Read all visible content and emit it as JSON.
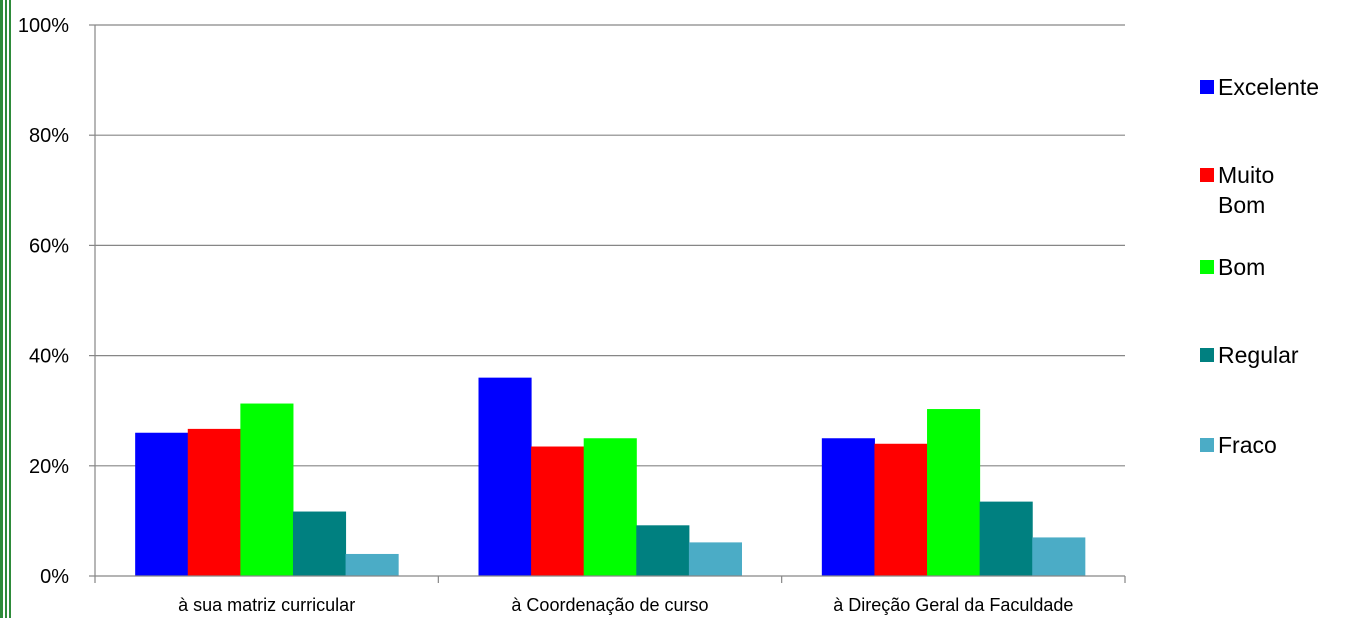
{
  "chart_data": {
    "type": "bar",
    "categories": [
      "à sua matriz curricular",
      "à Coordenação de curso",
      "à Direção Geral da Faculdade"
    ],
    "series": [
      {
        "name": "Excelente",
        "color": "#0000ff",
        "values": [
          26,
          36,
          25
        ]
      },
      {
        "name": "Muito Bom",
        "color": "#ff0000",
        "values": [
          26.7,
          23.5,
          24
        ]
      },
      {
        "name": "Bom",
        "color": "#00ff00",
        "values": [
          31.3,
          25,
          30.3
        ]
      },
      {
        "name": "Regular",
        "color": "#008080",
        "values": [
          11.7,
          9.2,
          13.5
        ]
      },
      {
        "name": "Fraco",
        "color": "#4bacc6",
        "values": [
          4,
          6.1,
          7
        ]
      }
    ],
    "yticks": [
      "0%",
      "20%",
      "40%",
      "60%",
      "80%",
      "100%"
    ],
    "ylim": [
      0,
      100
    ],
    "grid": true,
    "legend_position": "right",
    "border_color": "#2e8b3a"
  }
}
